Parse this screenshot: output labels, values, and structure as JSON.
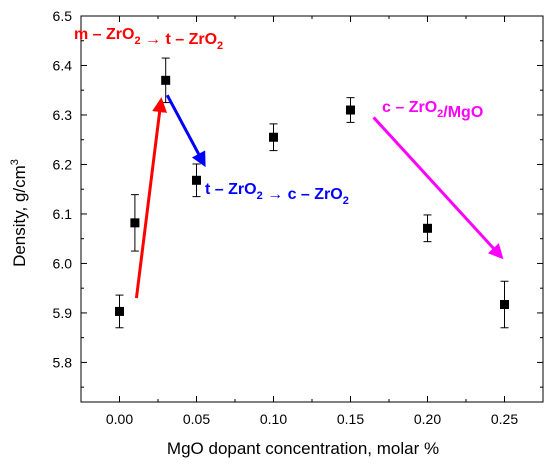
{
  "chart_data": {
    "type": "scatter",
    "title": "",
    "xlabel": "MgO dopant concentration, molar %",
    "ylabel_main": "Density, g/cm",
    "ylabel_sup": "3",
    "xlim": [
      -0.025,
      0.275
    ],
    "ylim": [
      5.72,
      6.5
    ],
    "xticks": [
      0.0,
      0.05,
      0.1,
      0.15,
      0.2,
      0.25
    ],
    "xtick_labels": [
      "0.00",
      "0.05",
      "0.10",
      "0.15",
      "0.20",
      "0.25"
    ],
    "yticks": [
      5.8,
      5.9,
      6.0,
      6.1,
      6.2,
      6.3,
      6.4,
      6.5
    ],
    "ytick_labels": [
      "5.8",
      "5.9",
      "6.0",
      "6.1",
      "6.2",
      "6.3",
      "6.4",
      "6.5"
    ],
    "grid": false,
    "legend": "none",
    "series": [
      {
        "marker": "filled-square",
        "color": "#000000",
        "x": [
          0.0,
          0.01,
          0.03,
          0.05,
          0.1,
          0.15,
          0.2,
          0.25
        ],
        "y": [
          5.903,
          6.082,
          6.37,
          6.168,
          6.255,
          6.31,
          6.071,
          5.917
        ],
        "err": [
          0.033,
          0.057,
          0.045,
          0.033,
          0.027,
          0.025,
          0.027,
          0.047
        ]
      }
    ],
    "annotations": [
      {
        "id": "anno-m-to-t",
        "color": "#ff0000",
        "segments": [
          {
            "t": "m – ZrO",
            "sub": false
          },
          {
            "t": "2",
            "sub": true
          },
          {
            "t": " → t – ZrO",
            "sub": false
          },
          {
            "t": "2",
            "sub": true
          }
        ],
        "arrow_from": [
          0.011,
          5.93
        ],
        "arrow_to": [
          0.027,
          6.33
        ]
      },
      {
        "id": "anno-t-to-c",
        "color": "#0000ff",
        "segments": [
          {
            "t": "t – ZrO",
            "sub": false
          },
          {
            "t": "2",
            "sub": true
          },
          {
            "t": " → c – ZrO",
            "sub": false
          },
          {
            "t": "2",
            "sub": true
          }
        ],
        "arrow_from": [
          0.031,
          6.34
        ],
        "arrow_to": [
          0.055,
          6.2
        ]
      },
      {
        "id": "anno-c-mgo",
        "color": "#ff00ff",
        "segments": [
          {
            "t": "c – ZrO",
            "sub": false
          },
          {
            "t": "2",
            "sub": true
          },
          {
            "t": "/MgO",
            "sub": false
          }
        ],
        "arrow_from": [
          0.165,
          6.295
        ],
        "arrow_to": [
          0.248,
          6.013
        ]
      }
    ]
  }
}
